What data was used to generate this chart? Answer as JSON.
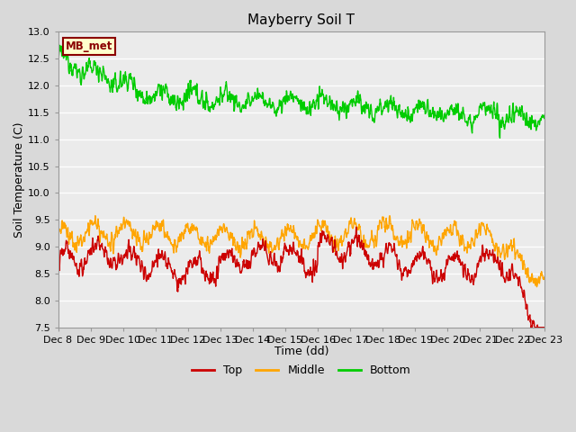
{
  "title": "Mayberry Soil T",
  "xlabel": "Time (dd)",
  "ylabel": "Soil Temperature (C)",
  "ylim": [
    7.5,
    13.0
  ],
  "yticks": [
    7.5,
    8.0,
    8.5,
    9.0,
    9.5,
    10.0,
    10.5,
    11.0,
    11.5,
    12.0,
    12.5,
    13.0
  ],
  "xtick_labels": [
    "Dec 8",
    "Dec 9",
    "Dec 10",
    "Dec 11",
    "Dec 12",
    "Dec 13",
    "Dec 14",
    "Dec 15",
    "Dec 16",
    "Dec 17",
    "Dec 18",
    "Dec 19",
    "Dec 20",
    "Dec 21",
    "Dec 22",
    "Dec 23"
  ],
  "colors": {
    "top": "#cc0000",
    "middle": "#ffa500",
    "bottom": "#00cc00"
  },
  "legend_label": "MB_met",
  "legend_box_facecolor": "#ffffcc",
  "legend_box_edgecolor": "#8b0000",
  "background_color": "#d9d9d9",
  "plot_bg_color": "#ebebeb",
  "grid_color": "#ffffff",
  "line_width": 1.0,
  "title_fontsize": 11,
  "label_fontsize": 9,
  "tick_fontsize": 8
}
